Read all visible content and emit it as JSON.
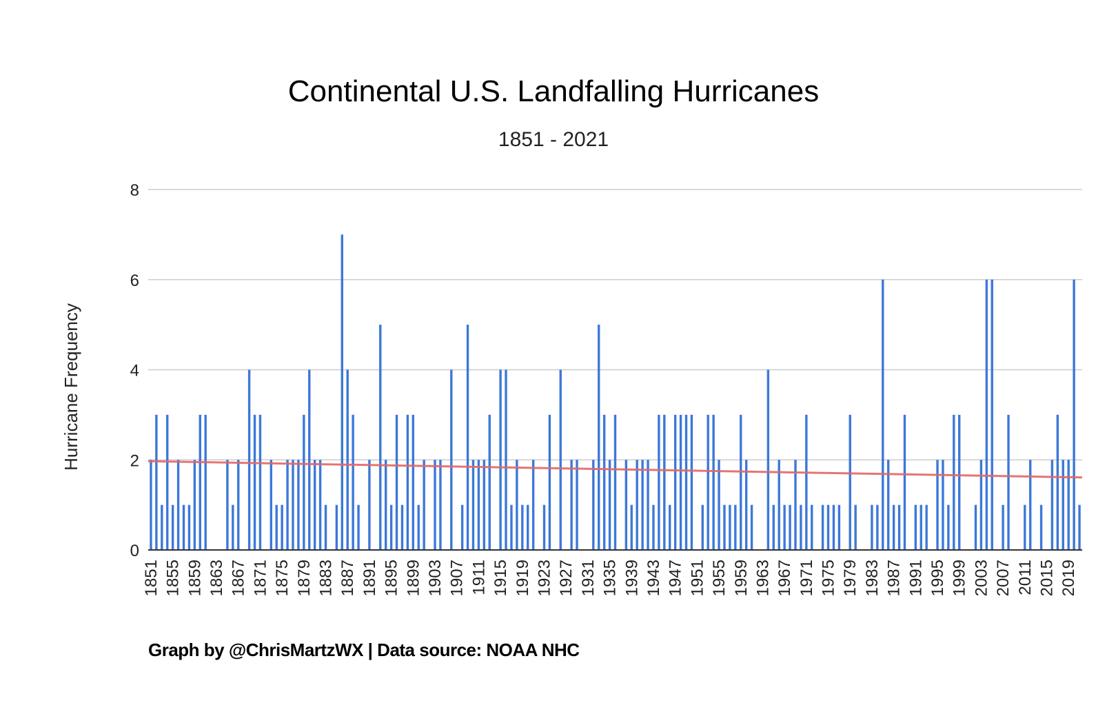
{
  "chart_data": {
    "type": "bar",
    "title": "Continental U.S. Landfalling Hurricanes",
    "subtitle": "1851 - 2021",
    "xlabel": "",
    "ylabel": "Hurricane Frequency",
    "ylim": [
      0,
      8
    ],
    "yticks": [
      0,
      2,
      4,
      6,
      8
    ],
    "xticks": [
      "1851",
      "1855",
      "1859",
      "1863",
      "1867",
      "1871",
      "1875",
      "1879",
      "1883",
      "1887",
      "1891",
      "1895",
      "1899",
      "1903",
      "1907",
      "1911",
      "1915",
      "1919",
      "1923",
      "1927",
      "1931",
      "1935",
      "1939",
      "1943",
      "1947",
      "1951",
      "1955",
      "1959",
      "1963",
      "1967",
      "1971",
      "1975",
      "1979",
      "1983",
      "1987",
      "1991",
      "1995",
      "1999",
      "2003",
      "2007",
      "2011",
      "2015",
      "2019"
    ],
    "grid": true,
    "colors": {
      "bars": "#3c78d8",
      "trendline": "#e06666",
      "grid": "#cccccc"
    },
    "x_start": 1851,
    "x_end": 2021,
    "values": [
      2,
      3,
      1,
      3,
      1,
      2,
      1,
      1,
      2,
      3,
      3,
      0,
      0,
      0,
      2,
      1,
      2,
      0,
      4,
      3,
      3,
      0,
      2,
      1,
      1,
      2,
      2,
      2,
      3,
      4,
      2,
      2,
      1,
      0,
      1,
      7,
      4,
      3,
      1,
      0,
      2,
      0,
      5,
      2,
      1,
      3,
      1,
      3,
      3,
      1,
      2,
      0,
      2,
      2,
      0,
      4,
      0,
      1,
      5,
      2,
      2,
      2,
      3,
      0,
      4,
      4,
      1,
      2,
      1,
      1,
      2,
      0,
      1,
      3,
      0,
      4,
      0,
      2,
      2,
      0,
      0,
      2,
      5,
      3,
      2,
      3,
      0,
      2,
      1,
      2,
      2,
      2,
      1,
      3,
      3,
      1,
      3,
      3,
      3,
      3,
      0,
      1,
      3,
      3,
      2,
      1,
      1,
      1,
      3,
      2,
      1,
      0,
      0,
      4,
      1,
      2,
      1,
      1,
      2,
      1,
      3,
      1,
      0,
      1,
      1,
      1,
      1,
      0,
      3,
      1,
      0,
      0,
      1,
      1,
      6,
      2,
      1,
      1,
      3,
      0,
      1,
      1,
      1,
      0,
      2,
      2,
      1,
      3,
      3,
      0,
      0,
      1,
      2,
      6,
      6,
      0,
      1,
      3,
      0,
      0,
      1,
      2,
      0,
      1,
      0,
      2,
      3,
      2,
      2,
      6,
      1
    ],
    "trendline": {
      "start": 1.97,
      "end": 1.61
    }
  },
  "footer": {
    "credit": "Graph by @ChrisMartzWX | Data source: NOAA NHC"
  }
}
